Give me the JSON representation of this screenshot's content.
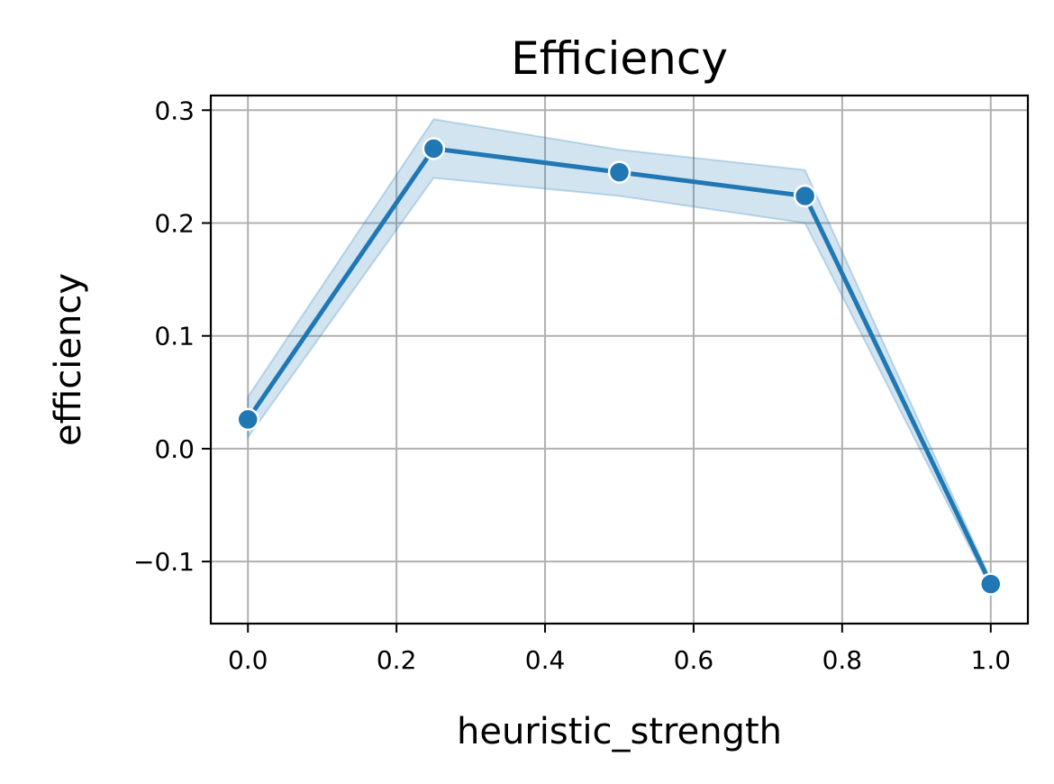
{
  "chart_data": {
    "type": "line",
    "title": "Efficiency",
    "xlabel": "heuristic_strength",
    "ylabel": "efficiency",
    "xlim": [
      -0.05,
      1.05
    ],
    "ylim": [
      -0.155,
      0.313
    ],
    "xticks": [
      0.0,
      0.2,
      0.4,
      0.6,
      0.8,
      1.0
    ],
    "xtick_labels": [
      "0.0",
      "0.2",
      "0.4",
      "0.6",
      "0.8",
      "1.0"
    ],
    "yticks": [
      -0.1,
      0.0,
      0.1,
      0.2,
      0.3
    ],
    "ytick_labels": [
      "−0.1",
      "0.0",
      "0.1",
      "0.2",
      "0.3"
    ],
    "grid": true,
    "series": [
      {
        "color": "#1f77b4",
        "marker": "circle",
        "x": [
          0.0,
          0.25,
          0.5,
          0.75,
          1.0
        ],
        "y": [
          0.026,
          0.266,
          0.245,
          0.224,
          -0.12
        ],
        "ci_lower": [
          0.01,
          0.24,
          0.224,
          0.2,
          -0.124
        ],
        "ci_upper": [
          0.046,
          0.292,
          0.265,
          0.247,
          -0.116
        ],
        "band_color": "#1f77b4"
      }
    ]
  }
}
